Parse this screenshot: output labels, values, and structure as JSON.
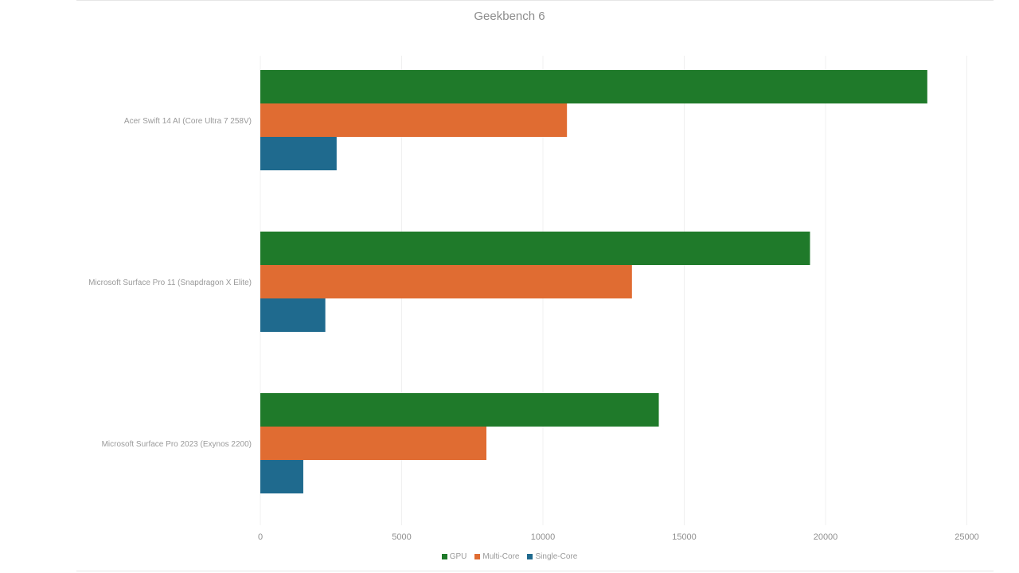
{
  "chart_data": {
    "type": "bar",
    "orientation": "horizontal",
    "title": "Geekbench 6",
    "xlabel": "",
    "ylabel": "",
    "xlim": [
      0,
      25000
    ],
    "x_ticks": [
      0,
      5000,
      10000,
      15000,
      20000,
      25000
    ],
    "grid": "vertical",
    "legend_position": "bottom",
    "categories": [
      "Acer Swift 14 AI (Core Ultra 7 258V)",
      "Microsoft Surface Pro 11 (Snapdragon X Elite)",
      "Microsoft Surface Pro 2023 (Exynos 2200)"
    ],
    "series": [
      {
        "name": "GPU",
        "color": "#1f7a2a",
        "values": [
          23600,
          19450,
          14100
        ]
      },
      {
        "name": "Multi-Core",
        "color": "#e06c32",
        "values": [
          10850,
          13150,
          8000
        ]
      },
      {
        "name": "Single-Core",
        "color": "#1f6a8e",
        "values": [
          2700,
          2300,
          1520
        ]
      }
    ]
  }
}
